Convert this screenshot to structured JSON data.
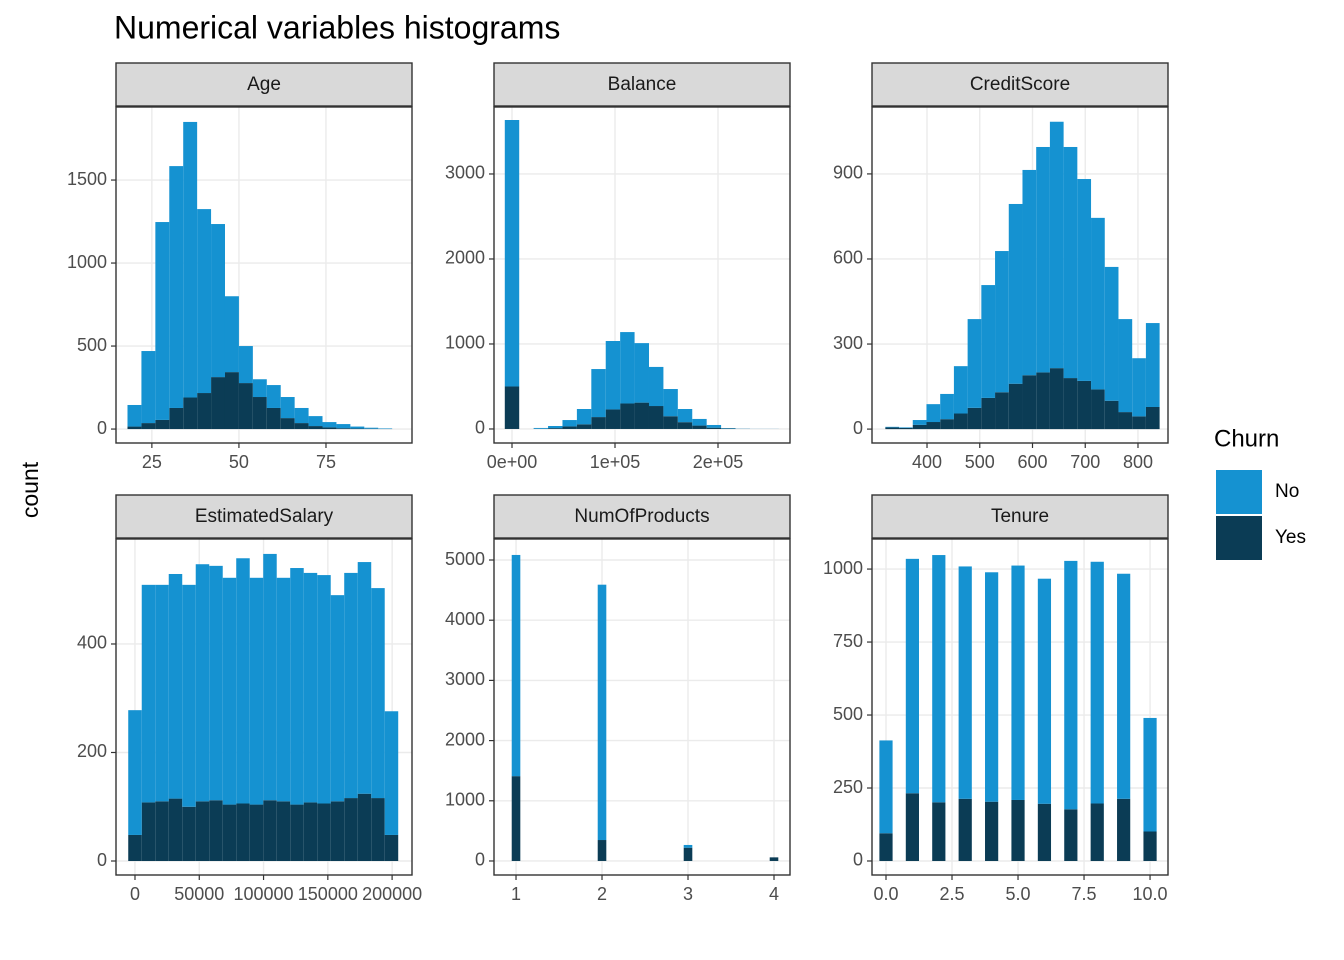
{
  "title": "Numerical variables histograms",
  "ylabel": "count",
  "legend_title": "Churn",
  "chart_data": [
    {
      "type": "histogram",
      "title": "Age",
      "stacked": true,
      "grid": true,
      "bins": [
        18,
        22,
        26,
        30,
        34,
        38,
        42,
        46,
        50,
        54,
        58,
        62,
        66,
        70,
        74,
        78,
        82,
        86,
        90,
        94
      ],
      "series": [
        {
          "name": "No",
          "color": "#1592d1",
          "values": [
            130,
            434,
            1192,
            1457,
            1660,
            1108,
            922,
            457,
            223,
            107,
            138,
            127,
            91,
            60,
            32,
            25,
            12,
            6,
            3
          ]
        },
        {
          "name": "Yes",
          "color": "#0b3c55",
          "values": [
            15,
            36,
            55,
            127,
            190,
            217,
            313,
            343,
            277,
            193,
            127,
            66,
            36,
            18,
            10,
            5,
            3,
            2,
            1
          ]
        }
      ],
      "xlim": [
        14.7,
        99.7
      ],
      "ylim": [
        -84,
        1940
      ],
      "xticks": [
        25,
        50,
        75
      ],
      "yticks": [
        0,
        500,
        1000,
        1500
      ]
    },
    {
      "type": "histogram",
      "title": "Balance",
      "stacked": true,
      "grid": true,
      "bins": [
        -7000,
        7000,
        21000,
        35000,
        49000,
        63000,
        77000,
        91000,
        105000,
        119000,
        133000,
        147000,
        161000,
        175000,
        189000,
        203000,
        217000,
        231000,
        245000,
        259000
      ],
      "series": [
        {
          "name": "No",
          "color": "#1592d1",
          "values": [
            3135,
            0,
            10,
            25,
            75,
            180,
            565,
            805,
            840,
            700,
            460,
            320,
            155,
            78,
            32,
            5,
            2,
            1,
            1
          ]
        },
        {
          "name": "Yes",
          "color": "#0b3c55",
          "values": [
            500,
            0,
            2,
            10,
            30,
            55,
            140,
            230,
            300,
            310,
            270,
            150,
            80,
            40,
            15,
            5,
            1,
            0,
            0
          ]
        }
      ],
      "xlim": [
        -17476,
        269900
      ],
      "ylim": [
        -165,
        3788
      ],
      "xticks": [
        {
          "value": 0,
          "label": "0e+00"
        },
        {
          "value": 100000,
          "label": "1e+05"
        },
        {
          "value": 200000,
          "label": "2e+05"
        }
      ],
      "yticks": [
        0,
        1000,
        2000,
        3000
      ]
    },
    {
      "type": "histogram",
      "title": "CreditScore",
      "stacked": true,
      "grid": true,
      "bins": [
        321,
        347,
        373,
        399,
        425,
        451,
        477,
        503,
        529,
        555,
        581,
        607,
        633,
        659,
        685,
        711,
        737,
        763,
        789,
        815,
        841
      ],
      "series": [
        {
          "name": "No",
          "color": "#1592d1",
          "values": [
            2,
            2,
            17,
            63,
            89,
            167,
            313,
            398,
            498,
            634,
            724,
            795,
            869,
            815,
            712,
            605,
            472,
            328,
            205,
            296
          ]
        },
        {
          "name": "Yes",
          "color": "#0b3c55",
          "values": [
            6,
            4,
            15,
            25,
            35,
            55,
            75,
            110,
            130,
            160,
            190,
            200,
            215,
            180,
            170,
            140,
            100,
            60,
            45,
            78
          ]
        }
      ],
      "xlim": [
        295.7,
        856.9
      ],
      "ylim": [
        -49,
        1136
      ],
      "xticks": [
        400,
        500,
        600,
        700,
        800
      ],
      "yticks": [
        0,
        300,
        600,
        900
      ]
    },
    {
      "type": "histogram",
      "title": "EstimatedSalary",
      "stacked": true,
      "grid": true,
      "bins": [
        -5250,
        5250,
        15750,
        26250,
        36750,
        47250,
        57750,
        68250,
        78750,
        89250,
        99750,
        110250,
        120750,
        131250,
        141750,
        152250,
        162750,
        173250,
        183750,
        194250,
        204750
      ],
      "series": [
        {
          "name": "No",
          "color": "#1592d1",
          "values": [
            230,
            401,
            399,
            414,
            409,
            437,
            432,
            418,
            452,
            418,
            454,
            412,
            436,
            423,
            421,
            380,
            415,
            427,
            387,
            228
          ]
        },
        {
          "name": "Yes",
          "color": "#0b3c55",
          "values": [
            48,
            108,
            110,
            115,
            100,
            110,
            112,
            104,
            106,
            104,
            112,
            110,
            104,
            108,
            106,
            110,
            116,
            124,
            116,
            48
          ]
        }
      ],
      "xlim": [
        -14770,
        215470
      ],
      "ylim": [
        -25.8,
        593.5
      ],
      "xticks": [
        0,
        50000,
        100000,
        150000,
        200000
      ],
      "yticks": [
        0,
        200,
        400
      ]
    },
    {
      "type": "histogram",
      "title": "NumOfProducts",
      "stacked": true,
      "grid": true,
      "bins": [
        0.95,
        1.05,
        1.15,
        1.25,
        1.35,
        1.45,
        1.55,
        1.65,
        1.75,
        1.85,
        1.95,
        2.05,
        2.15,
        2.25,
        2.35,
        2.45,
        2.55,
        2.65,
        2.75,
        2.85,
        2.95,
        3.05,
        3.15,
        3.25,
        3.35,
        3.45,
        3.55,
        3.65,
        3.75,
        3.85,
        3.95,
        4.05
      ],
      "series": [
        {
          "name": "No",
          "color": "#1592d1",
          "values": [
            3675,
            0,
            0,
            0,
            0,
            0,
            0,
            0,
            0,
            0,
            4242,
            0,
            0,
            0,
            0,
            0,
            0,
            0,
            0,
            0,
            46,
            0,
            0,
            0,
            0,
            0,
            0,
            0,
            0,
            0,
            0
          ]
        },
        {
          "name": "Yes",
          "color": "#0b3c55",
          "values": [
            1409,
            0,
            0,
            0,
            0,
            0,
            0,
            0,
            0,
            0,
            348,
            0,
            0,
            0,
            0,
            0,
            0,
            0,
            0,
            0,
            220,
            0,
            0,
            0,
            0,
            0,
            0,
            0,
            0,
            0,
            60
          ]
        }
      ],
      "xlim": [
        0.744,
        4.186
      ],
      "ylim": [
        -233,
        5349
      ],
      "xticks": [
        1,
        2,
        3,
        4
      ],
      "yticks": [
        0,
        1000,
        2000,
        3000,
        4000,
        5000
      ]
    },
    {
      "type": "histogram",
      "title": "Tenure",
      "stacked": true,
      "grid": true,
      "bins": [
        -0.25,
        0.25,
        0.75,
        1.25,
        1.75,
        2.25,
        2.75,
        3.25,
        3.75,
        4.25,
        4.75,
        5.25,
        5.75,
        6.25,
        6.75,
        7.25,
        7.75,
        8.25,
        8.75,
        9.25,
        9.75,
        10.25
      ],
      "series": [
        {
          "name": "No",
          "color": "#1592d1",
          "values": [
            318,
            0,
            803,
            0,
            847,
            0,
            796,
            0,
            786,
            0,
            803,
            0,
            771,
            0,
            851,
            0,
            828,
            0,
            771,
            0,
            389
          ]
        },
        {
          "name": "Yes",
          "color": "#0b3c55",
          "values": [
            95,
            0,
            232,
            0,
            201,
            0,
            213,
            0,
            203,
            0,
            209,
            0,
            196,
            0,
            177,
            0,
            197,
            0,
            213,
            0,
            101
          ]
        }
      ],
      "xlim": [
        -0.53,
        10.68
      ],
      "ylim": [
        -48,
        1103
      ],
      "xticks": [
        {
          "value": 0,
          "label": "0.0"
        },
        2.5,
        {
          "value": 5,
          "label": "5.0"
        },
        7.5,
        {
          "value": 10,
          "label": "10.0"
        }
      ],
      "yticks": [
        0,
        250,
        500,
        750,
        1000
      ]
    }
  ]
}
